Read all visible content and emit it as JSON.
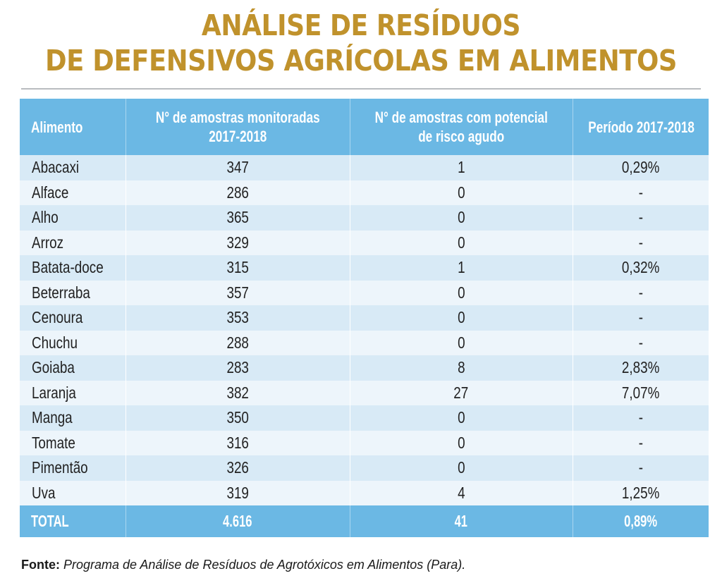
{
  "title": {
    "line1": "ANÁLISE DE RESÍDUOS",
    "line2": "DE DEFENSIVOS AGRÍCOLAS EM ALIMENTOS"
  },
  "table": {
    "headers": [
      "Alimento",
      "N° de amostras monitoradas 2017-2018",
      "N° de amostras com potencial de risco agudo",
      "Período 2017-2018"
    ],
    "header_lines": {
      "h2a": "N° de amostras monitoradas",
      "h2b": "2017-2018",
      "h3a": "N° de amostras com potencial",
      "h3b": "de risco agudo"
    },
    "rows": [
      {
        "alimento": "Abacaxi",
        "monitoradas": "347",
        "risco": "1",
        "periodo": "0,29%"
      },
      {
        "alimento": "Alface",
        "monitoradas": "286",
        "risco": "0",
        "periodo": "-"
      },
      {
        "alimento": "Alho",
        "monitoradas": "365",
        "risco": "0",
        "periodo": "-"
      },
      {
        "alimento": "Arroz",
        "monitoradas": "329",
        "risco": "0",
        "periodo": "-"
      },
      {
        "alimento": "Batata-doce",
        "monitoradas": "315",
        "risco": "1",
        "periodo": "0,32%"
      },
      {
        "alimento": "Beterraba",
        "monitoradas": "357",
        "risco": "0",
        "periodo": "-"
      },
      {
        "alimento": "Cenoura",
        "monitoradas": "353",
        "risco": "0",
        "periodo": "-"
      },
      {
        "alimento": "Chuchu",
        "monitoradas": "288",
        "risco": "0",
        "periodo": "-"
      },
      {
        "alimento": "Goiaba",
        "monitoradas": "283",
        "risco": "8",
        "periodo": "2,83%"
      },
      {
        "alimento": "Laranja",
        "monitoradas": "382",
        "risco": "27",
        "periodo": "7,07%"
      },
      {
        "alimento": "Manga",
        "monitoradas": "350",
        "risco": "0",
        "periodo": "-"
      },
      {
        "alimento": "Tomate",
        "monitoradas": "316",
        "risco": "0",
        "periodo": "-"
      },
      {
        "alimento": "Pimentão",
        "monitoradas": "326",
        "risco": "0",
        "periodo": "-"
      },
      {
        "alimento": "Uva",
        "monitoradas": "319",
        "risco": "4",
        "periodo": "1,25%"
      }
    ],
    "total": {
      "alimento": "TOTAL",
      "monitoradas": "4.616",
      "risco": "41",
      "periodo": "0,89%"
    }
  },
  "source": {
    "label": "Fonte:",
    "text": "Programa de Análise de Resíduos de Agrotóxicos em Alimentos (Para)."
  },
  "colors": {
    "title": "#c0922c",
    "header_bg": "#6bb8e4",
    "row_odd": "#d8eaf6",
    "row_even": "#edf5fb"
  }
}
